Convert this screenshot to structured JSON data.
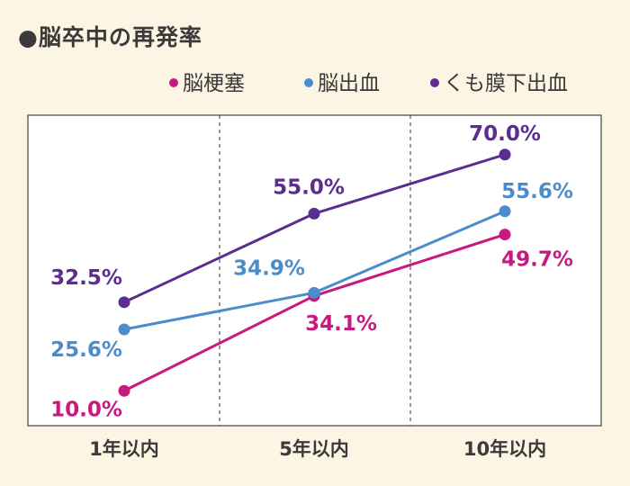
{
  "title": "●脳卒中の再発率",
  "chart_data": {
    "type": "line",
    "title": "●脳卒中の再発率",
    "categories": [
      "1年以内",
      "5年以内",
      "10年以内"
    ],
    "series": [
      {
        "name": "脳梗塞",
        "values": [
          10.0,
          34.1,
          49.7
        ],
        "labels": [
          "10.0%",
          "34.1%",
          "49.7%"
        ],
        "color": "#c8197f"
      },
      {
        "name": "脳出血",
        "values": [
          25.6,
          34.9,
          55.6
        ],
        "labels": [
          "25.6%",
          "34.9%",
          "55.6%"
        ],
        "color": "#4b8ccc"
      },
      {
        "name": "くも膜下出血",
        "values": [
          32.5,
          55.0,
          70.0
        ],
        "labels": [
          "32.5%",
          "55.0%",
          "70.0%"
        ],
        "color": "#5c2d91"
      }
    ],
    "ylim": [
      0,
      80
    ],
    "xlabel": "",
    "ylabel": "",
    "legend": "top-right",
    "grid": "dashed vertical separators"
  }
}
